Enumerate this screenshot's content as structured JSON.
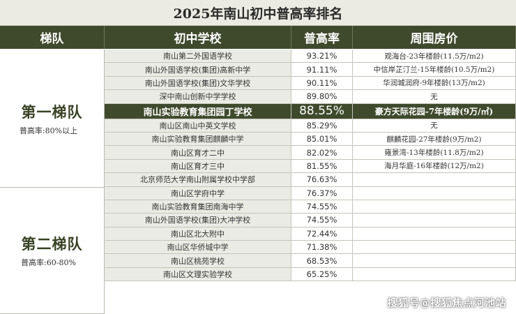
{
  "title": "2025年南山初中普高率排名",
  "headers": {
    "tier": "梯队",
    "school": "初中学校",
    "rate": "普高率",
    "price": "周围房价"
  },
  "tiers": [
    {
      "name": "第一梯队",
      "rate_note": "普高率:80%以上"
    },
    {
      "name": "第二梯队",
      "rate_note": "普高率:60-80%"
    }
  ],
  "rows": [
    {
      "school": "南山第二外国语学校",
      "rate": "93.21%",
      "price": "观海台-23年楼龄(11.5万/m2)"
    },
    {
      "school": "南山外国语学校(集团)高新中学",
      "rate": "91.11%",
      "price": "中信岸芷汀兰-15年楼龄(10.5万/m2)"
    },
    {
      "school": "南山外国语学校(集团)文华学校",
      "rate": "90.11%",
      "price": "华润城润府-9年楼龄(13万/m2)"
    },
    {
      "school": "深中南山创新中学学校",
      "rate": "89.80%",
      "price": "无"
    },
    {
      "school": "南山实验教育集团园丁学校",
      "rate": "88.55%",
      "price": "豪方天际花园-7年楼龄(9万/㎡)",
      "highlight": true
    },
    {
      "school": "南山区南山中英文学校",
      "rate": "85.29%",
      "price": "无"
    },
    {
      "school": "南山实验教育集团麒麟中学",
      "rate": "85.01%",
      "price": "麒麟花园-27年楼龄(9万/m2)"
    },
    {
      "school": "南山区育才二中",
      "rate": "82.02%",
      "price": "雍景湾-13年楼龄(11.8万/m2)"
    },
    {
      "school": "南山区育才三中",
      "rate": "81.55%",
      "price": "海月华庭-16年楼龄(12万/m2)"
    },
    {
      "school": "北京师范大学南山附属学校中学部",
      "rate": "76.63%",
      "price": ""
    },
    {
      "school": "南山区学府中学",
      "rate": "76.37%",
      "price": ""
    },
    {
      "school": "南山实验教育集团南海中学",
      "rate": "74.55%",
      "price": ""
    },
    {
      "school": "南山外国语学校(集团)大冲学校",
      "rate": "74.55%",
      "price": ""
    },
    {
      "school": "南山区北大附中",
      "rate": "72.44%",
      "price": ""
    },
    {
      "school": "南山区华侨城中学",
      "rate": "71.38%",
      "price": ""
    },
    {
      "school": "南山区桃苑学校",
      "rate": "68.53%",
      "price": ""
    },
    {
      "school": "南山区文理实验学校",
      "rate": "65.25%",
      "price": ""
    }
  ],
  "watermark": "搜狐号@搜狐焦点河池站",
  "colors": {
    "header_bg": "#3f4a2d",
    "title_bg": "#ecebe3",
    "school_cell_bg": "#ebebe5"
  }
}
